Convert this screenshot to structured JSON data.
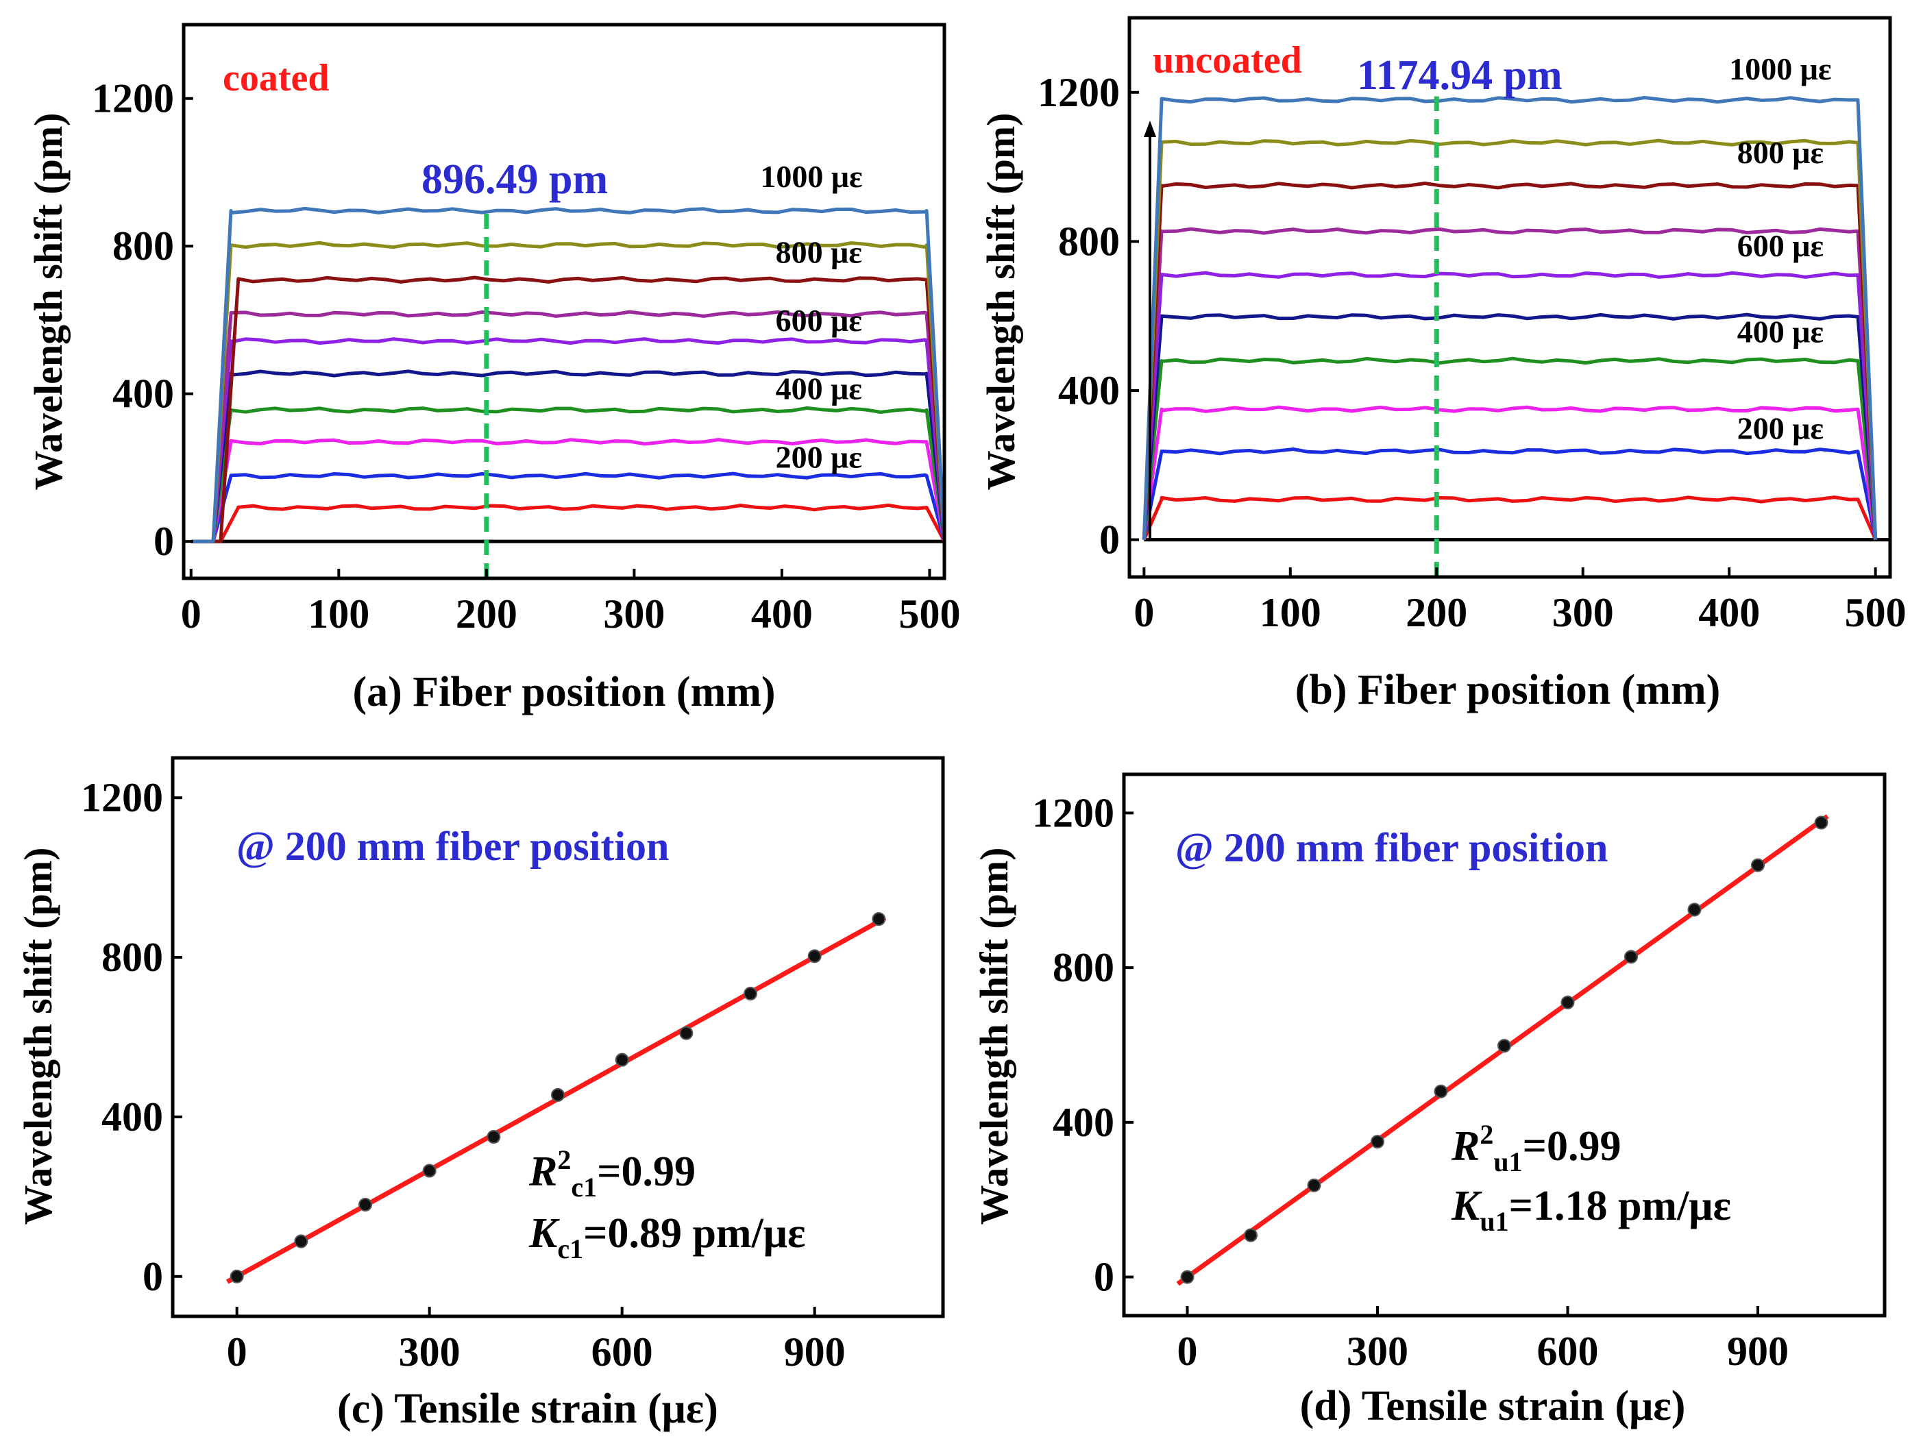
{
  "chart_data": [
    {
      "id": "a",
      "type": "line",
      "xlabel": "Fiber position (mm)",
      "ylabel": "Wavelength shift (pm)",
      "caption_letter": "(a)",
      "xlim": [
        -5,
        510
      ],
      "ylim": [
        -100,
        1400
      ],
      "xticks": [
        0,
        100,
        200,
        300,
        400,
        500
      ],
      "yticks": [
        0,
        400,
        800,
        1200
      ],
      "tag": "coated",
      "tag_color": "#ff1a1a",
      "marker_value_label": "896.49 pm",
      "marker_x": 200,
      "series": [
        {
          "strain": 100,
          "plateau": 92,
          "start": 20,
          "end": 510,
          "color": "#ee1111"
        },
        {
          "strain": 200,
          "plateau": 178,
          "start": 15,
          "end": 510,
          "color": "#1a2de0"
        },
        {
          "strain": 300,
          "plateau": 270,
          "start": 15,
          "end": 510,
          "color": "#ee22ee"
        },
        {
          "strain": 400,
          "plateau": 356,
          "start": 15,
          "end": 510,
          "color": "#1f8f1f"
        },
        {
          "strain": 500,
          "plateau": 455,
          "start": 15,
          "end": 510,
          "color": "#12178c"
        },
        {
          "strain": 600,
          "plateau": 543,
          "start": 15,
          "end": 510,
          "color": "#8f21e6"
        },
        {
          "strain": 700,
          "plateau": 616,
          "start": 15,
          "end": 510,
          "color": "#9c2a9c"
        },
        {
          "strain": 800,
          "plateau": 709,
          "start": 20,
          "end": 510,
          "color": "#8b1010"
        },
        {
          "strain": 900,
          "plateau": 803,
          "start": 15,
          "end": 510,
          "color": "#8c8c1a"
        },
        {
          "strain": 1000,
          "plateau": 896,
          "start": 15,
          "end": 510,
          "color": "#3f77b8"
        }
      ],
      "strain_labels": [
        {
          "text": "1000 με",
          "x": 420,
          "y": 960
        },
        {
          "text": "800 με",
          "x": 425,
          "y": 755
        },
        {
          "text": "600 με",
          "x": 425,
          "y": 570
        },
        {
          "text": "400 με",
          "x": 425,
          "y": 385
        },
        {
          "text": "200 με",
          "x": 425,
          "y": 200
        }
      ]
    },
    {
      "id": "b",
      "type": "line",
      "xlabel": "Fiber position (mm)",
      "ylabel": "Wavelength shift (pm)",
      "caption_letter": "(b)",
      "xlim": [
        -10,
        510
      ],
      "ylim": [
        -100,
        1400
      ],
      "xticks": [
        0,
        100,
        200,
        300,
        400,
        500
      ],
      "yticks": [
        0,
        400,
        800,
        1200
      ],
      "tag": "uncoated",
      "tag_color": "#ff1a1a",
      "marker_value_label": "1174.94 pm",
      "marker_x": 200,
      "series": [
        {
          "strain": 100,
          "plateau": 108,
          "start": 0,
          "end": 500,
          "color": "#ee1111"
        },
        {
          "strain": 200,
          "plateau": 237,
          "start": 0,
          "end": 500,
          "color": "#1a2de0"
        },
        {
          "strain": 300,
          "plateau": 350,
          "start": 0,
          "end": 500,
          "color": "#ee22ee"
        },
        {
          "strain": 400,
          "plateau": 480,
          "start": 0,
          "end": 500,
          "color": "#1f8f1f"
        },
        {
          "strain": 500,
          "plateau": 598,
          "start": 0,
          "end": 500,
          "color": "#12178c"
        },
        {
          "strain": 600,
          "plateau": 710,
          "start": 0,
          "end": 500,
          "color": "#8f21e6"
        },
        {
          "strain": 700,
          "plateau": 828,
          "start": 0,
          "end": 500,
          "color": "#9c2a9c"
        },
        {
          "strain": 800,
          "plateau": 950,
          "start": 0,
          "end": 500,
          "color": "#8b1010"
        },
        {
          "strain": 900,
          "plateau": 1065,
          "start": 0,
          "end": 500,
          "color": "#8c8c1a"
        },
        {
          "strain": 1000,
          "plateau": 1180,
          "start": 0,
          "end": 500,
          "color": "#3f77b8"
        }
      ],
      "strain_labels": [
        {
          "text": "1000 με",
          "x": 435,
          "y": 1235
        },
        {
          "text": "800 με",
          "x": 435,
          "y": 1010
        },
        {
          "text": "600 με",
          "x": 435,
          "y": 760
        },
        {
          "text": "400 με",
          "x": 435,
          "y": 530
        },
        {
          "text": "200 με",
          "x": 435,
          "y": 270
        }
      ]
    },
    {
      "id": "c",
      "type": "scatter",
      "xlabel": "Tensile strain (με)",
      "ylabel": "Wavelength shift (pm)",
      "caption_letter": "(c)",
      "xlim": [
        -100,
        1100
      ],
      "ylim": [
        -100,
        1300
      ],
      "xticks": [
        0,
        300,
        600,
        900
      ],
      "yticks": [
        0,
        400,
        800,
        1200
      ],
      "annotation": "@ 200 mm fiber position",
      "annotation_color": "#2b2bd0",
      "fit_color": "#ff1a1a",
      "x": [
        0,
        100,
        200,
        300,
        400,
        500,
        600,
        700,
        800,
        900,
        1000
      ],
      "y": [
        0,
        88,
        180,
        265,
        350,
        455,
        543,
        610,
        709,
        803,
        896
      ],
      "fit": {
        "slope": 0.89,
        "intercept": 0
      },
      "r2": {
        "symbol": "R",
        "sup": "2",
        "sub": "c1",
        "value": "=0.99"
      },
      "k": {
        "symbol": "K",
        "sub": "c1",
        "value": "=0.89 pm/με"
      }
    },
    {
      "id": "d",
      "type": "scatter",
      "xlabel": "Tensile strain (με)",
      "ylabel": "Wavelength shift (pm)",
      "caption_letter": "(d)",
      "xlim": [
        -100,
        1100
      ],
      "ylim": [
        -100,
        1300
      ],
      "xticks": [
        0,
        300,
        600,
        900
      ],
      "yticks": [
        0,
        400,
        800,
        1200
      ],
      "annotation": "@ 200 mm fiber position",
      "annotation_color": "#2b2bd0",
      "fit_color": "#ff1a1a",
      "x": [
        0,
        100,
        200,
        300,
        400,
        500,
        600,
        700,
        800,
        900,
        1000
      ],
      "y": [
        0,
        108,
        237,
        350,
        480,
        598,
        710,
        828,
        950,
        1065,
        1175
      ],
      "fit": {
        "slope": 1.18,
        "intercept": 0
      },
      "r2": {
        "symbol": "R",
        "sup": "2",
        "sub": "u1",
        "value": "=0.99"
      },
      "k": {
        "symbol": "K",
        "sub": "u1",
        "value": "=1.18 pm/με"
      }
    }
  ]
}
